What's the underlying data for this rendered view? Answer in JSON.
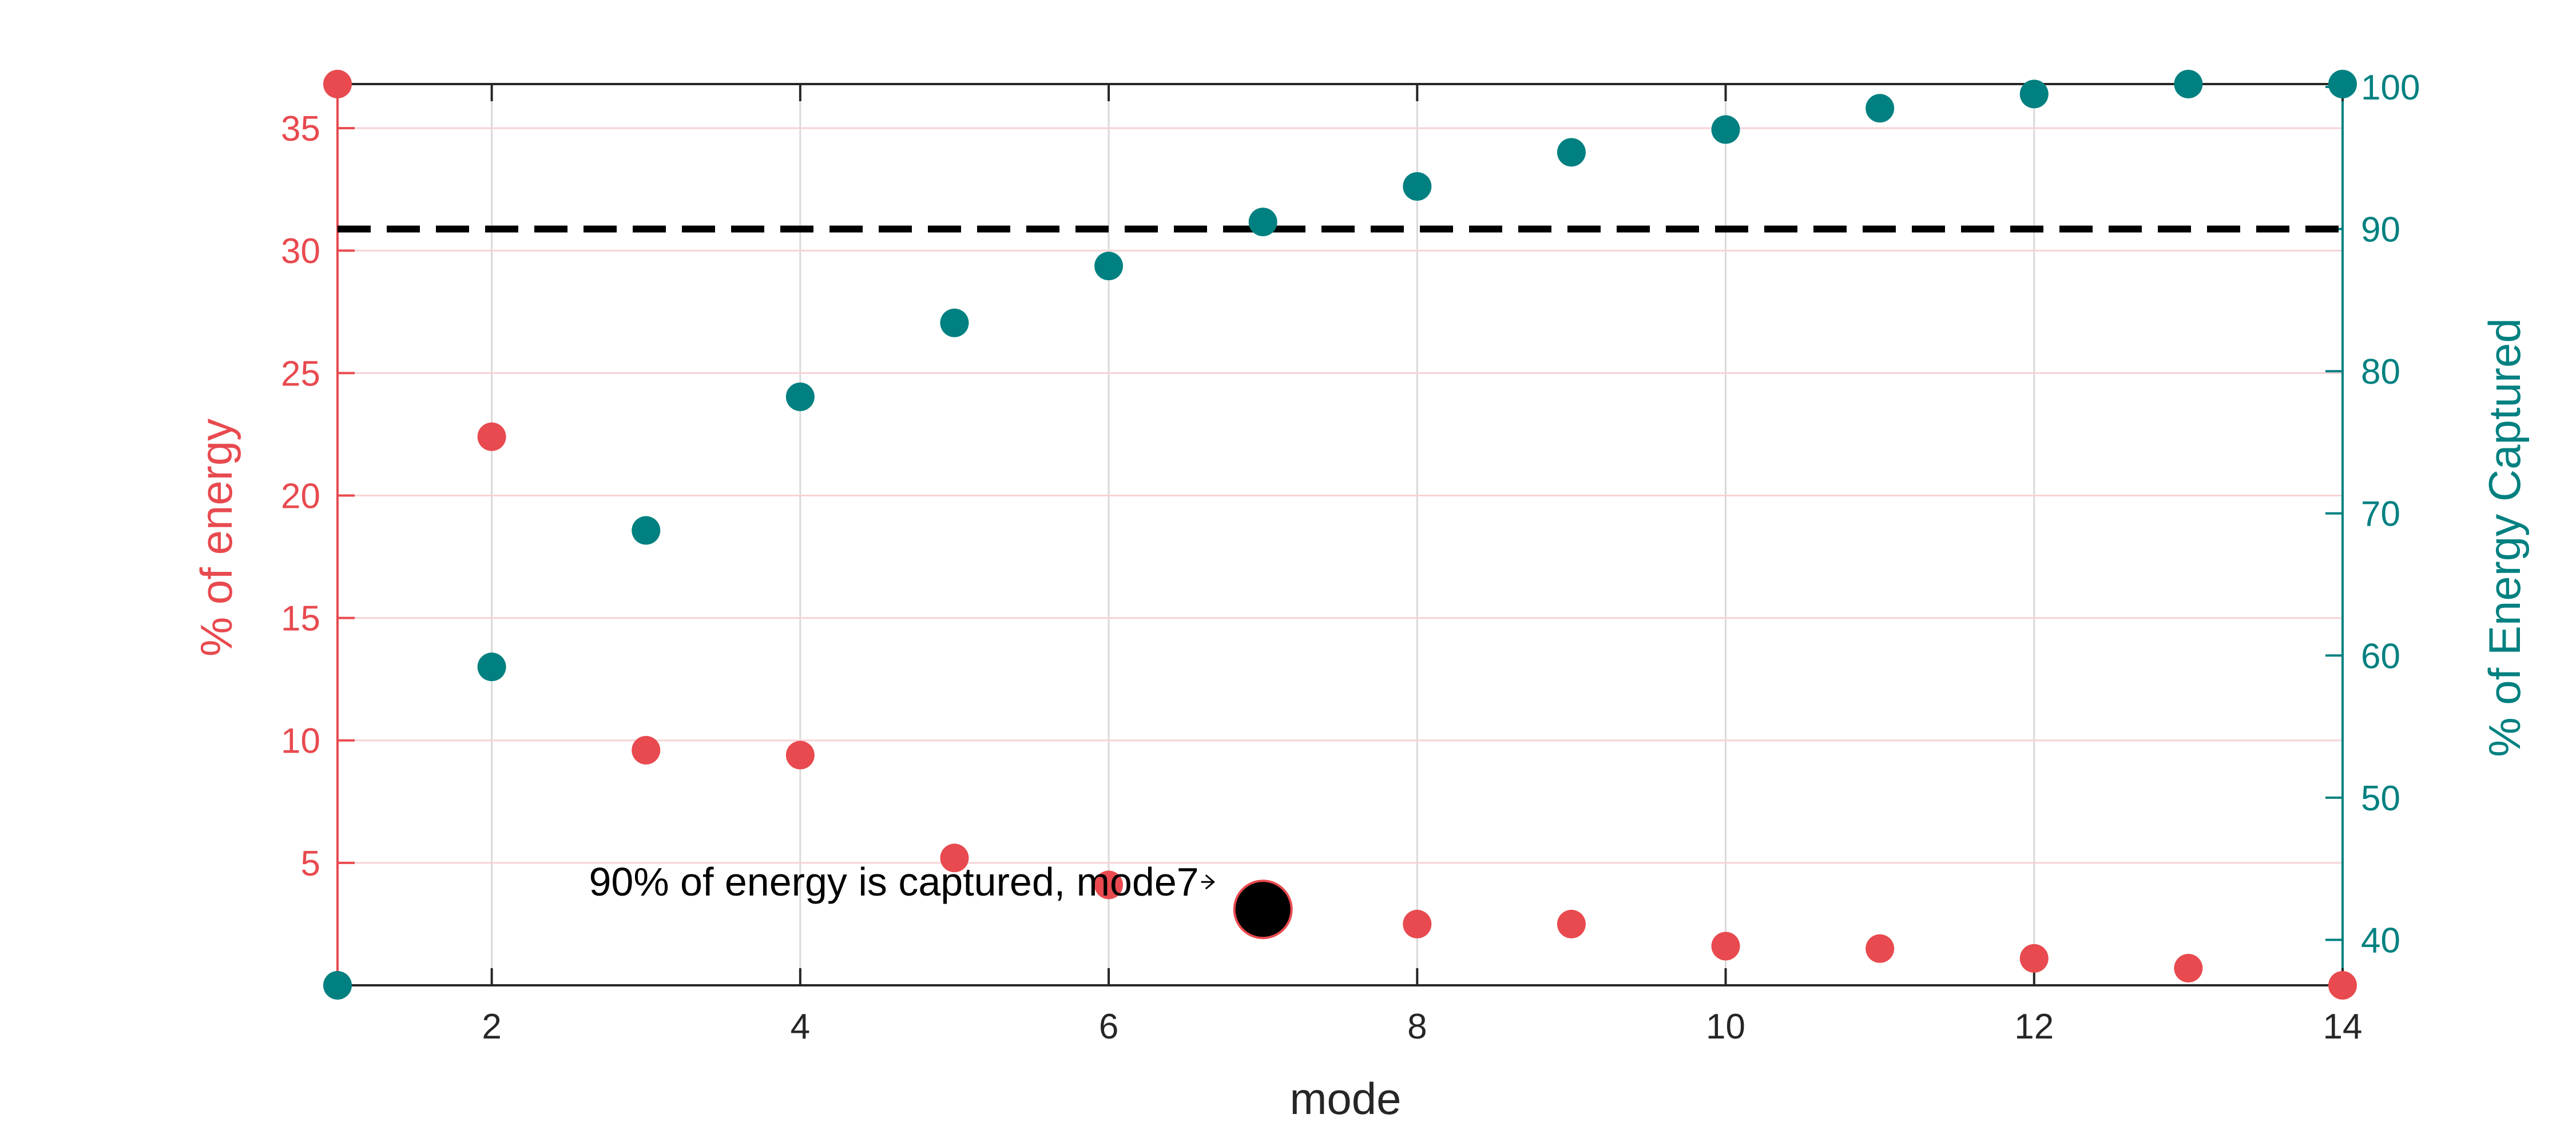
{
  "chart_data": {
    "type": "scatter",
    "x": [
      1,
      2,
      3,
      4,
      5,
      6,
      7,
      8,
      9,
      10,
      11,
      12,
      13,
      14
    ],
    "series": [
      {
        "axis": "left",
        "values": [
          36.8,
          22.4,
          9.6,
          9.4,
          5.2,
          4.1,
          3.1,
          2.5,
          2.5,
          1.6,
          1.5,
          1.1,
          0.7,
          0.0
        ]
      },
      {
        "axis": "right",
        "values": [
          36.8,
          59.2,
          68.8,
          78.2,
          83.4,
          87.4,
          90.5,
          93.0,
          95.4,
          97.0,
          98.5,
          99.5,
          100.2,
          100.2
        ]
      }
    ],
    "threshold": 90,
    "highlight": {
      "x": 7,
      "y": 3.1
    },
    "annotation": "90% of energy is captured, mode7",
    "xlabel": "mode",
    "ylabel_left": "% of energy",
    "ylabel_right": "% of Energy Captured",
    "xlim": [
      1,
      14
    ],
    "ylim_left": [
      0,
      36.8
    ],
    "ylim_right": [
      36.8,
      100.2
    ],
    "xticks": [
      2,
      4,
      6,
      8,
      10,
      12,
      14
    ],
    "yticks_left": [
      5,
      10,
      15,
      20,
      25,
      30,
      35
    ],
    "yticks_right": [
      40,
      50,
      60,
      70,
      80,
      90,
      100
    ],
    "grid": true,
    "colors": {
      "left": "#e84a4f",
      "right": "#008080",
      "grid_x": "#d9d9d9",
      "grid_y": "#f6d3d5",
      "threshold": "#000000",
      "highlight": "#000000"
    }
  }
}
